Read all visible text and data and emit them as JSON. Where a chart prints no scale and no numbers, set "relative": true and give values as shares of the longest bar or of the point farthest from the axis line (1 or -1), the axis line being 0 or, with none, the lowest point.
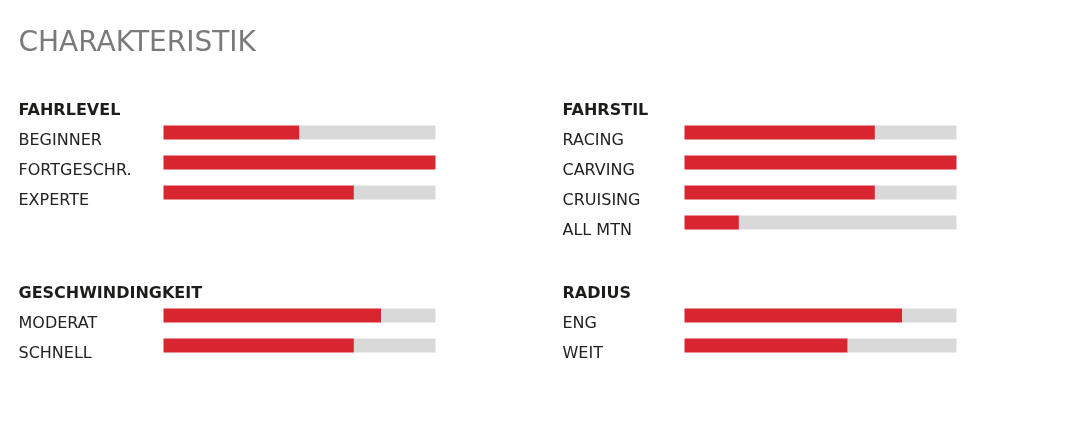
{
  "chart_data": [
    {
      "type": "other",
      "title": "CHARAKTERISTIK"
    },
    {
      "type": "bar",
      "title": "FAHRLEVEL",
      "orientation": "horizontal",
      "stacked": true,
      "relative": true,
      "categories": [
        "BEGINNER",
        "FORTGESCHR.",
        "EXPERTE"
      ],
      "series": [
        {
          "color": "#d7262f",
          "values": [
            0.5,
            1,
            0.7
          ]
        },
        {
          "color": "#d9d9d9",
          "values": [
            0.5,
            0,
            0.3
          ]
        }
      ]
    },
    {
      "type": "bar",
      "title": "FAHRSTIL",
      "orientation": "horizontal",
      "stacked": true,
      "relative": true,
      "categories": [
        "RACING",
        "CARVING",
        "CRUISING",
        "ALL MTN"
      ],
      "series": [
        {
          "color": "#d7262f",
          "values": [
            0.7,
            1,
            0.7,
            0.2
          ]
        },
        {
          "color": "#d9d9d9",
          "values": [
            0.3,
            0,
            0.3,
            0.8
          ]
        }
      ]
    },
    {
      "type": "bar",
      "title": "GESCHWINDINGKEIT",
      "orientation": "horizontal",
      "stacked": true,
      "relative": true,
      "categories": [
        "MODERAT",
        "SCHNELL"
      ],
      "series": [
        {
          "color": "#d7262f",
          "values": [
            0.8,
            0.7
          ]
        },
        {
          "color": "#d9d9d9",
          "values": [
            0.2,
            0.3
          ]
        }
      ]
    },
    {
      "type": "bar",
      "title": "RADIUS",
      "orientation": "horizontal",
      "stacked": true,
      "relative": true,
      "categories": [
        "ENG",
        "WEIT"
      ],
      "series": [
        {
          "color": "#d7262f",
          "values": [
            0.8,
            0.6
          ]
        },
        {
          "color": "#d9d9d9",
          "values": [
            0.2,
            0.4
          ]
        }
      ]
    }
  ]
}
